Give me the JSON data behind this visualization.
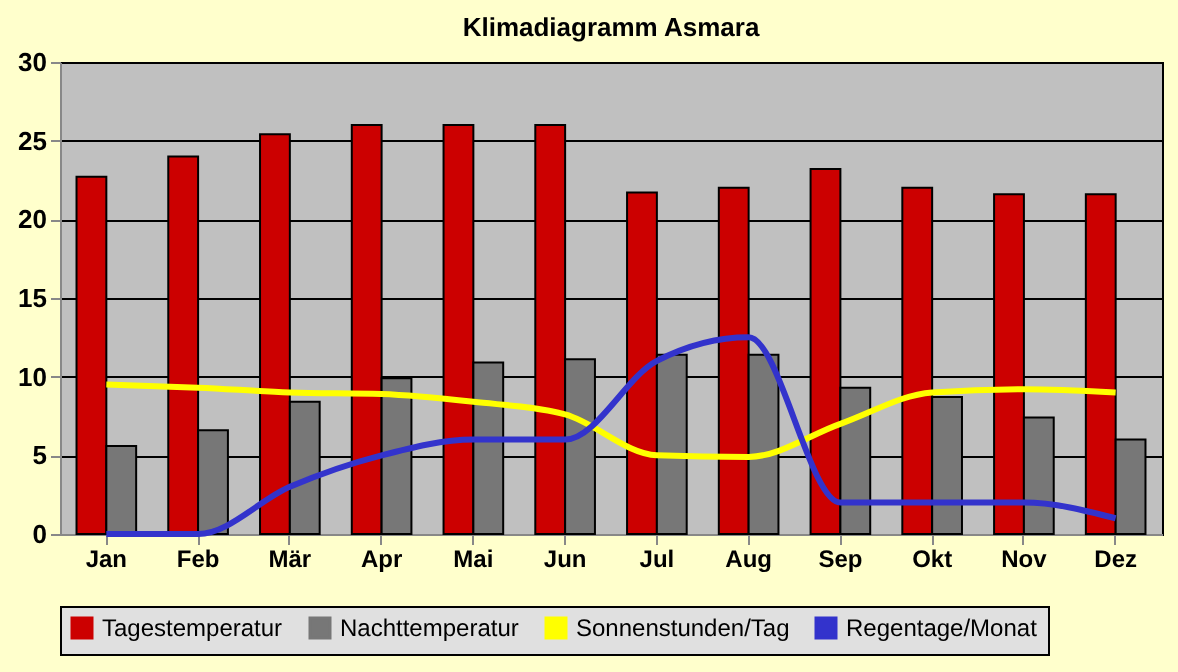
{
  "chart_data": {
    "type": "bar",
    "title": "Klimadiagramm Asmara",
    "categories": [
      "Jan",
      "Feb",
      "Mär",
      "Apr",
      "Mai",
      "Jun",
      "Jul",
      "Aug",
      "Sep",
      "Okt",
      "Nov",
      "Dez"
    ],
    "series": [
      {
        "name": "Tagestemperatur",
        "color": "#cc0000",
        "values": [
          22.7,
          24,
          25.4,
          26,
          26,
          26,
          21.7,
          22,
          23.2,
          22,
          21.6,
          21.6
        ]
      },
      {
        "name": "Nachttemperatur",
        "color": "#777777",
        "values": [
          5.6,
          6.6,
          8.4,
          9.9,
          10.9,
          11.1,
          11.4,
          11.4,
          9.3,
          8.7,
          7.4,
          6.0
        ]
      },
      {
        "name": "Sonnenstunden/Tag",
        "type": "line",
        "color": "#ffff00",
        "values": [
          9.5,
          9.3,
          9.0,
          8.9,
          8.4,
          7.6,
          5.0,
          4.9,
          7.0,
          9.0,
          9.2,
          9.0
        ]
      },
      {
        "name": "Regentage/Monat",
        "type": "line",
        "color": "#3333cc",
        "values": [
          0,
          0,
          3,
          5,
          6,
          6,
          11,
          12.5,
          2,
          2,
          2,
          1
        ]
      }
    ],
    "ylim": [
      0,
      30
    ],
    "yticks": [
      0,
      5,
      10,
      15,
      20,
      25,
      30
    ],
    "grid": "y",
    "legend": "bottom"
  }
}
